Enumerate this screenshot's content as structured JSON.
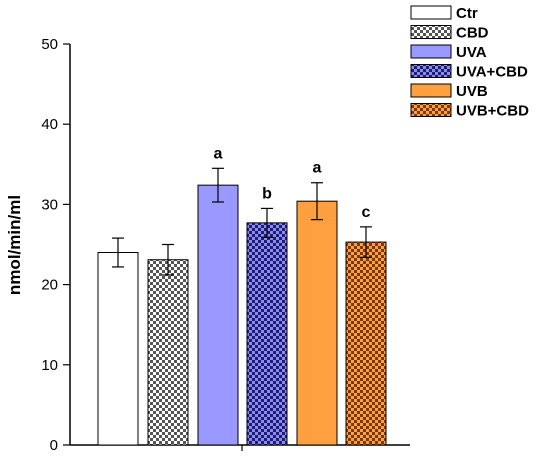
{
  "chart_data": {
    "type": "bar",
    "title": "",
    "xlabel": "",
    "ylabel": "nmol/min/ml",
    "ylim": [
      0,
      50
    ],
    "yticks": [
      "0",
      "10",
      "20",
      "30",
      "40",
      "50"
    ],
    "grid": false,
    "legend_position": "top-right",
    "categories": [
      "Ctr",
      "CBD",
      "UVA",
      "UVA+CBD",
      "UVB",
      "UVB+CBD"
    ],
    "values": [
      24.0,
      23.1,
      32.4,
      27.7,
      30.4,
      25.3
    ],
    "errors": [
      1.8,
      1.9,
      2.1,
      1.8,
      2.3,
      1.9
    ],
    "annotations": [
      "",
      "",
      "a",
      "b",
      "a",
      "c"
    ],
    "series_styles": [
      {
        "fill": "#ffffff",
        "pattern": "none"
      },
      {
        "fill": "#ffffff",
        "pattern": "checker-gray"
      },
      {
        "fill": "#9999ff",
        "pattern": "none"
      },
      {
        "fill": "#7777e0",
        "pattern": "checker-navy"
      },
      {
        "fill": "#ffa040",
        "pattern": "none"
      },
      {
        "fill": "#ffa040",
        "pattern": "checker-brown"
      }
    ]
  }
}
